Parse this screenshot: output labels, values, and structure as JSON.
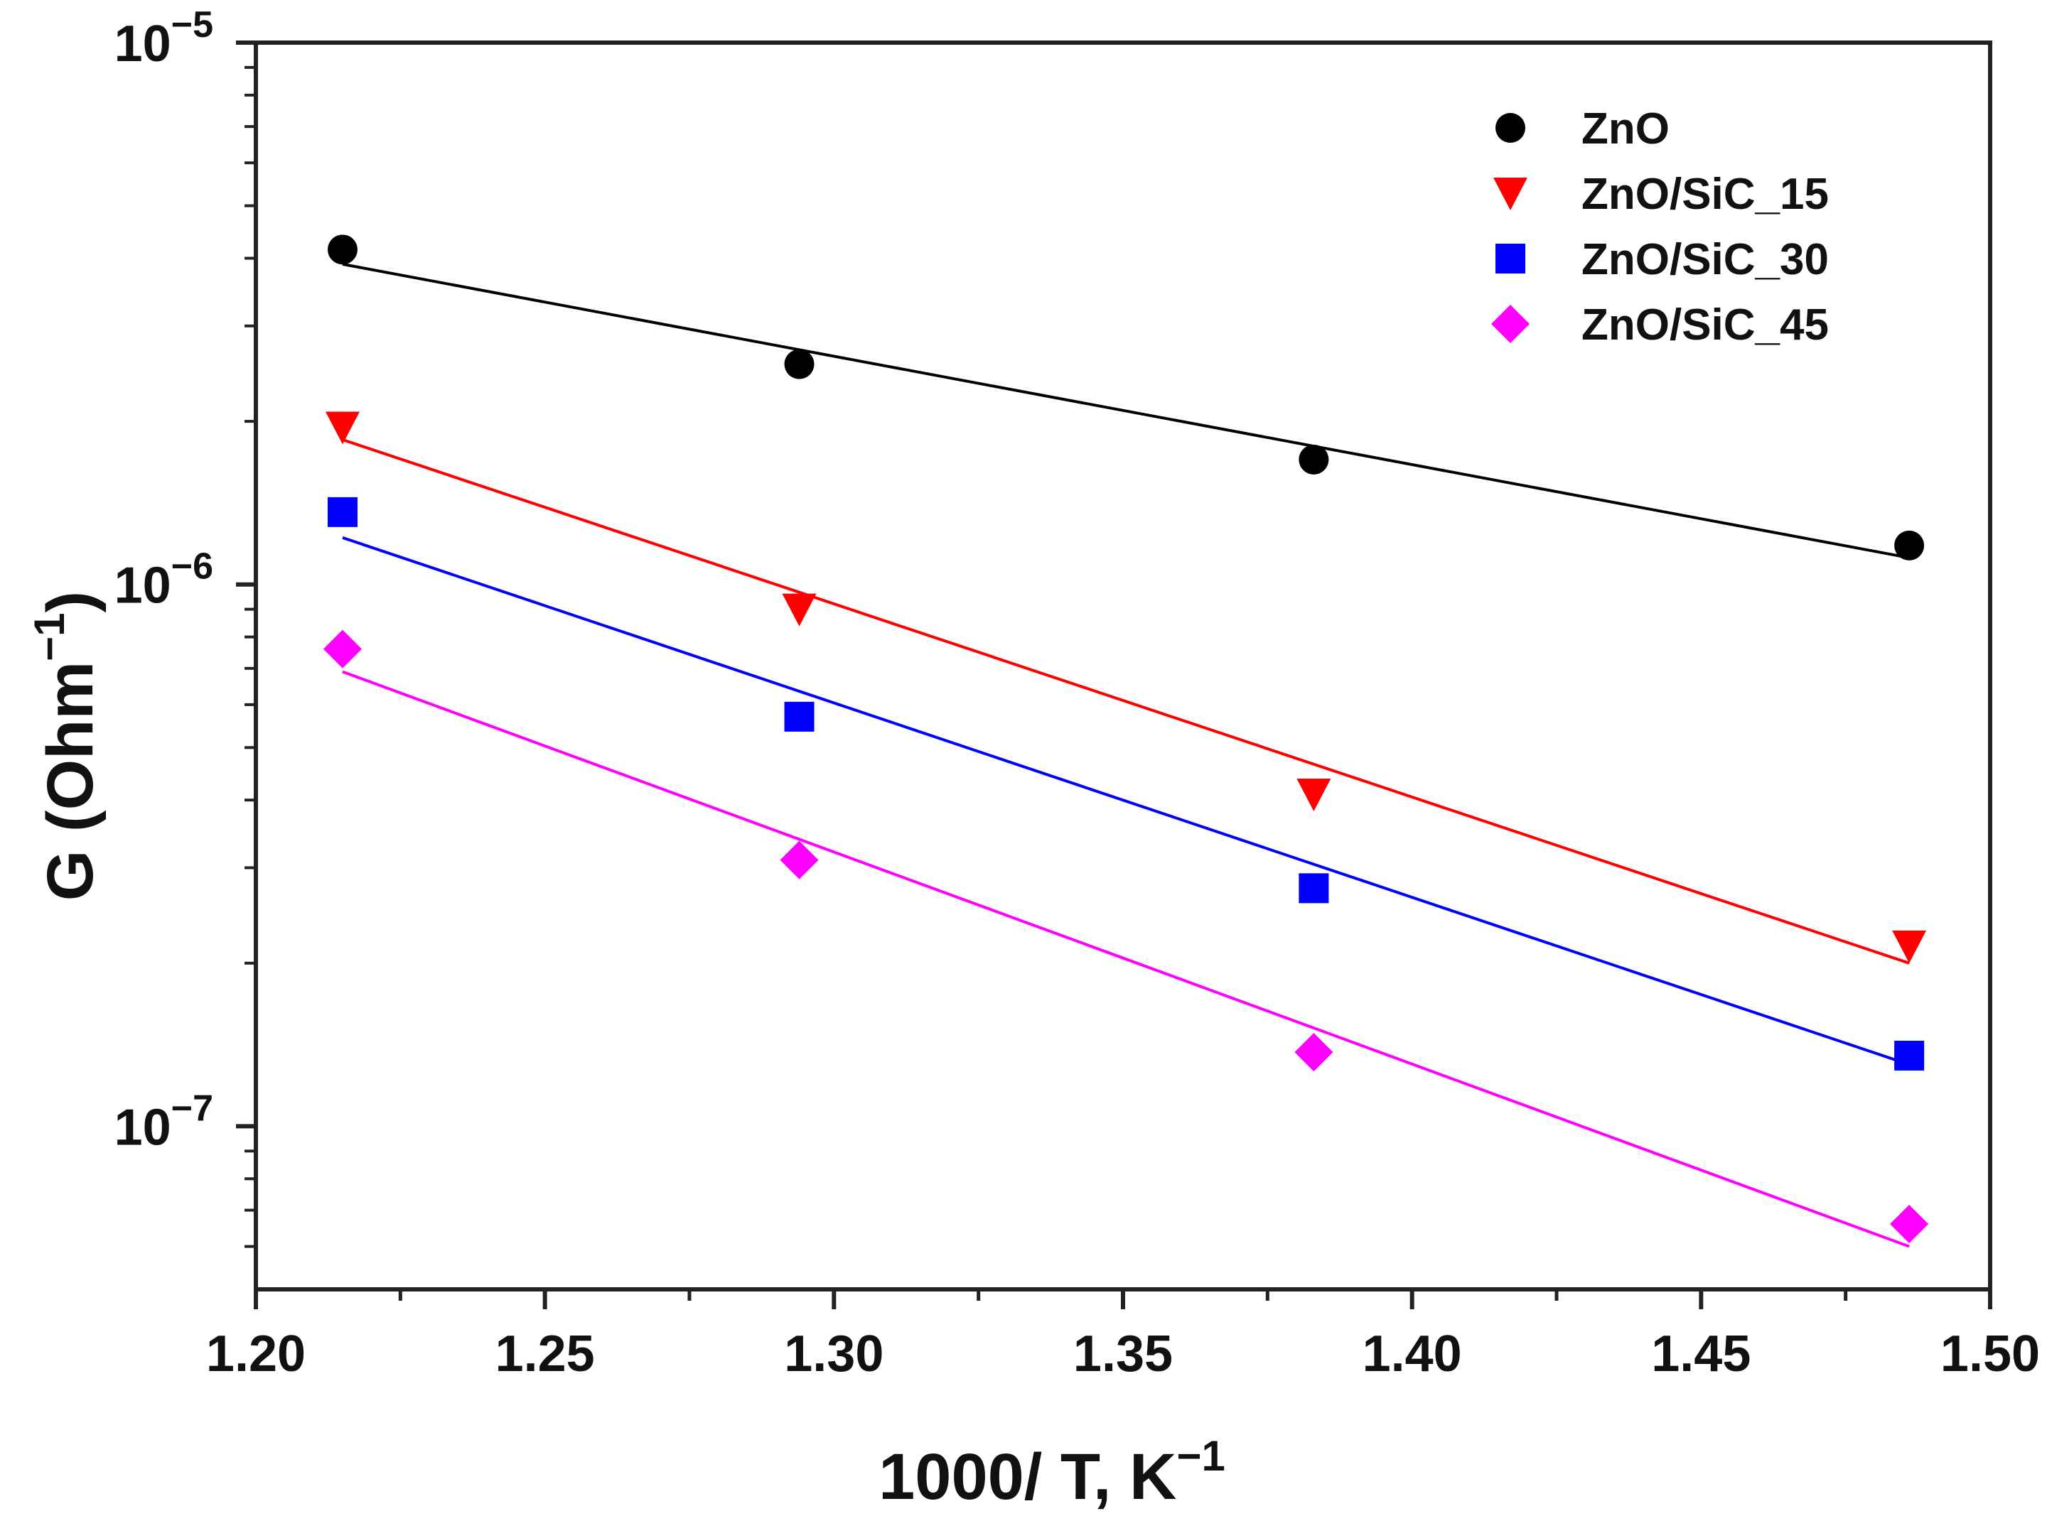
{
  "chart_data": {
    "type": "scatter",
    "title": "",
    "xlabel": "1000/ T, K",
    "xlabel_sup": "−1",
    "ylabel": "G (Ohm",
    "ylabel_sup": "−1",
    "ylabel_close": ")",
    "yscale": "log",
    "xlim": [
      1.2,
      1.5
    ],
    "ylim": [
      5e-08,
      1e-05
    ],
    "x_ticks": [
      1.2,
      1.25,
      1.3,
      1.35,
      1.4,
      1.45,
      1.5
    ],
    "x_tick_labels": [
      "1.20",
      "1.25",
      "1.30",
      "1.35",
      "1.40",
      "1.45",
      "1.50"
    ],
    "y_ticks": [
      {
        "value": 1e-05,
        "base": "10",
        "exp": "−5"
      },
      {
        "value": 1e-06,
        "base": "10",
        "exp": "−6"
      },
      {
        "value": 1e-07,
        "base": "10",
        "exp": "−7"
      }
    ],
    "grid": false,
    "legend_position": "top-right",
    "series": [
      {
        "name": "ZnO",
        "marker": "circle",
        "color": "#000000",
        "line_color": "#000000",
        "x": [
          1.215,
          1.294,
          1.383,
          1.486
        ],
        "y": [
          4.15e-06,
          2.55e-06,
          1.7e-06,
          1.18e-06
        ],
        "fit": [
          [
            1.215,
            3.9e-06
          ],
          [
            1.486,
            1.12e-06
          ]
        ]
      },
      {
        "name": "ZnO/SiC_15",
        "marker": "triangle-down",
        "color": "#ff0000",
        "line_color": "#ff0000",
        "x": [
          1.215,
          1.294,
          1.383,
          1.486
        ],
        "y": [
          1.95e-06,
          9e-07,
          4.1e-07,
          2.15e-07
        ],
        "fit": [
          [
            1.215,
            1.85e-06
          ],
          [
            1.486,
            2e-07
          ]
        ]
      },
      {
        "name": "ZnO/SiC_30",
        "marker": "square",
        "color": "#0000ff",
        "line_color": "#0000ff",
        "x": [
          1.215,
          1.294,
          1.383,
          1.486
        ],
        "y": [
          1.36e-06,
          5.7e-07,
          2.75e-07,
          1.35e-07
        ],
        "fit": [
          [
            1.215,
            1.22e-06
          ],
          [
            1.486,
            1.3e-07
          ]
        ]
      },
      {
        "name": "ZnO/SiC_45",
        "marker": "diamond",
        "color": "#ff00ff",
        "line_color": "#ff00ff",
        "x": [
          1.215,
          1.294,
          1.383,
          1.486
        ],
        "y": [
          7.6e-07,
          3.1e-07,
          1.37e-07,
          6.6e-08
        ],
        "fit": [
          [
            1.215,
            6.9e-07
          ],
          [
            1.486,
            6e-08
          ]
        ]
      }
    ]
  }
}
